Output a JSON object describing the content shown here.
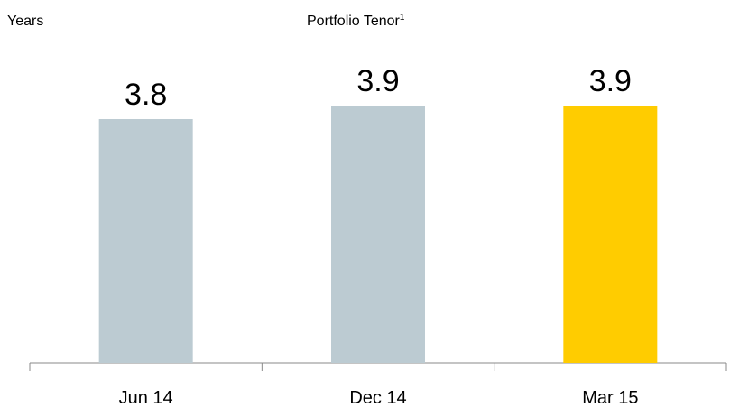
{
  "chart_data": {
    "type": "bar",
    "title": "Portfolio Tenor",
    "title_footnote": "1",
    "y_label": "Years",
    "categories": [
      "Jun 14",
      "Dec 14",
      "Mar 15"
    ],
    "values": [
      3.8,
      3.9,
      3.9
    ],
    "colors": [
      "#bccbd2",
      "#bccbd2",
      "#ffcc00"
    ],
    "ylim": [
      2,
      4
    ]
  }
}
